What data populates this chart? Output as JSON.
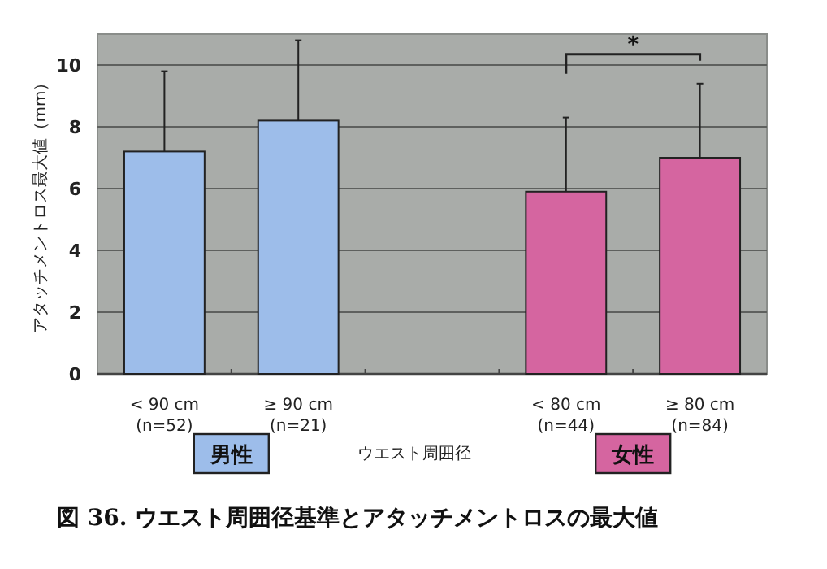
{
  "chart_data": {
    "type": "bar",
    "title": "図 36. ウエスト周囲径基準とアタッチメントロスの最大値",
    "xlabel": "ウエスト周囲径",
    "ylabel": "アタッチメントロス最大値（mm）",
    "categories": [
      "< 90 cm\n(n=52)",
      "≥ 90 cm\n(n=21)",
      null,
      "< 80 cm\n(n=44)",
      "≥ 80 cm\n(n=84)"
    ],
    "series": [
      {
        "name": "男性",
        "color": "#9dbdea",
        "values": [
          7.2,
          8.2,
          null,
          null,
          null
        ],
        "errors": [
          [
            7.2,
            9.8
          ],
          [
            8.2,
            10.8
          ],
          null,
          null,
          null
        ]
      },
      {
        "name": "女性",
        "color": "#d565a0",
        "values": [
          null,
          null,
          null,
          5.9,
          7.0
        ],
        "errors": [
          null,
          null,
          null,
          [
            5.9,
            8.3
          ],
          [
            7.0,
            9.4
          ]
        ]
      }
    ],
    "ylim": [
      0,
      11
    ],
    "yticks": [
      0,
      2,
      4,
      6,
      8,
      10
    ],
    "grid": "y",
    "legend": "bottom",
    "annotations": [
      "*"
    ]
  }
}
